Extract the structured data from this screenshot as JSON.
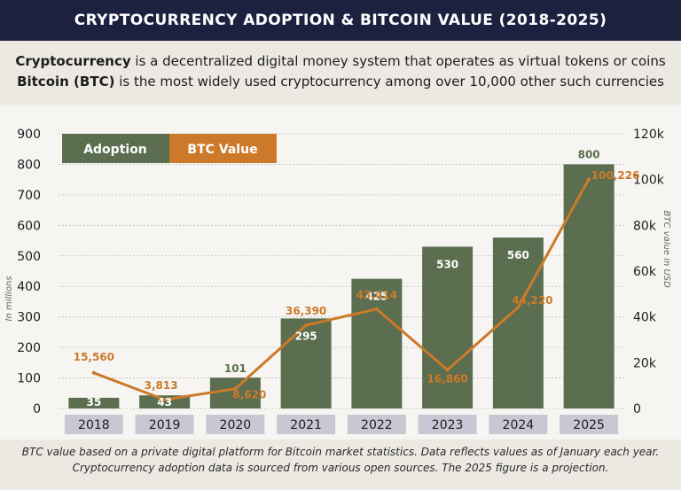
{
  "header": {
    "title": "CRYPTOCURRENCY ADOPTION & BITCOIN VALUE (2018-2025)"
  },
  "intro": {
    "line1_bold": "Cryptocurrency",
    "line1_rest": " is a decentralized digital money system that operates as virtual tokens or coins",
    "line2_bold": "Bitcoin (BTC)",
    "line2_rest": " is the most widely used cryptocurrency among over 10,000 other such currencies"
  },
  "footnote": {
    "line1": "BTC value based on a private digital platform for Bitcoin market statistics. Data reflects values as of January each year.",
    "line2": "Cryptocurrency adoption data is sourced from various open sources. The 2025 figure is a projection."
  },
  "colors": {
    "bar": "#5b6e4f",
    "line": "#cc7a2a",
    "title_bg": "#1c2140",
    "year_box": "#c9c7d4"
  },
  "chart_data": {
    "type": "bar",
    "categories": [
      "2018",
      "2019",
      "2020",
      "2021",
      "2022",
      "2023",
      "2024",
      "2025"
    ],
    "series": [
      {
        "name": "Adoption",
        "type": "bar",
        "axis": "left",
        "values": [
          35,
          43,
          101,
          295,
          425,
          530,
          560,
          800
        ],
        "labels": [
          "35",
          "43",
          "101",
          "295",
          "425",
          "530",
          "560",
          "800"
        ]
      },
      {
        "name": "BTC Value",
        "type": "line",
        "axis": "right",
        "values": [
          15560,
          3813,
          8620,
          36390,
          43414,
          16860,
          44220,
          100226
        ],
        "labels": [
          "15,560",
          "3,813",
          "8,620",
          "36,390",
          "43,414",
          "16,860",
          "44,220",
          "100,226"
        ]
      }
    ],
    "ylabel_left": "In millions",
    "ylabel_right": "BTC value in USD",
    "ylim_left": [
      0,
      900
    ],
    "ylim_right": [
      0,
      120000
    ],
    "yticks_left": [
      "0",
      "100",
      "200",
      "300",
      "400",
      "500",
      "600",
      "700",
      "800",
      "900"
    ],
    "yticks_right": [
      "0",
      "20k",
      "40k",
      "60k",
      "80k",
      "100k",
      "120k"
    ],
    "legend": [
      "Adoption",
      "BTC Value"
    ],
    "legend_position": "top-left",
    "grid": true
  }
}
